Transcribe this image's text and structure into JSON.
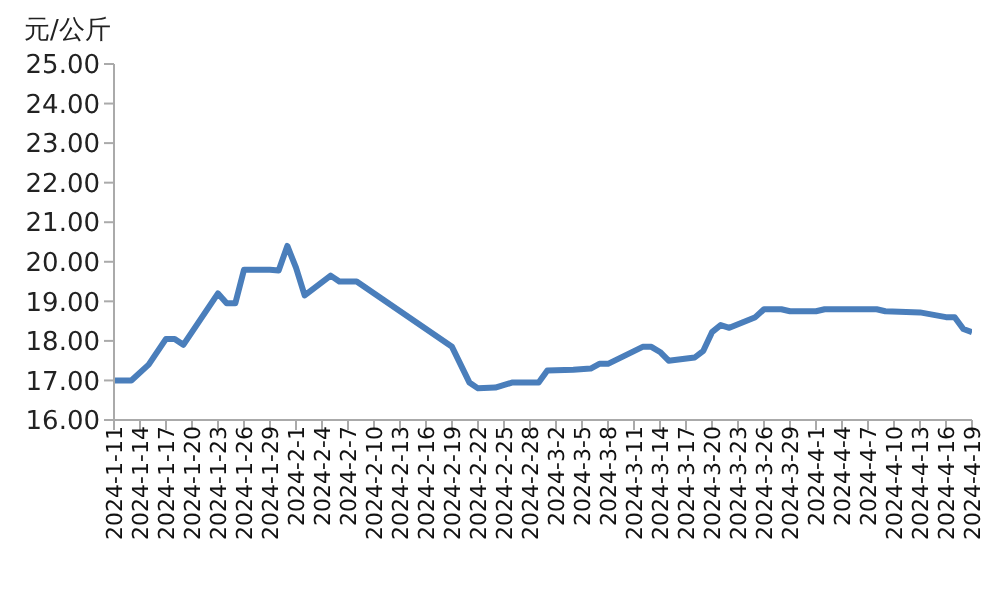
{
  "chart_data": {
    "type": "line",
    "ylabel": "元/公斤",
    "x": [
      "2024-01-11",
      "2024-01-13",
      "2024-01-15",
      "2024-01-17",
      "2024-01-18",
      "2024-01-19",
      "2024-01-23",
      "2024-01-24",
      "2024-01-25",
      "2024-01-26",
      "2024-01-29",
      "2024-01-30",
      "2024-01-31",
      "2024-02-01",
      "2024-02-02",
      "2024-02-05",
      "2024-02-06",
      "2024-02-08",
      "2024-02-19",
      "2024-02-21",
      "2024-02-22",
      "2024-02-24",
      "2024-02-26",
      "2024-02-29",
      "2024-03-01",
      "2024-03-04",
      "2024-03-06",
      "2024-03-07",
      "2024-03-08",
      "2024-03-12",
      "2024-03-13",
      "2024-03-14",
      "2024-03-15",
      "2024-03-18",
      "2024-03-19",
      "2024-03-20",
      "2024-03-21",
      "2024-03-22",
      "2024-03-25",
      "2024-03-26",
      "2024-03-28",
      "2024-03-29",
      "2024-04-01",
      "2024-04-02",
      "2024-04-08",
      "2024-04-09",
      "2024-04-13",
      "2024-04-16",
      "2024-04-17",
      "2024-04-18",
      "2024-04-19"
    ],
    "series": [
      {
        "color": "#4a7ebb",
        "values": [
          17.0,
          17.0,
          17.4,
          18.05,
          18.05,
          17.9,
          19.2,
          18.95,
          18.95,
          19.8,
          19.8,
          19.78,
          20.4,
          19.85,
          19.15,
          19.65,
          19.5,
          19.5,
          17.85,
          16.95,
          16.8,
          16.82,
          16.95,
          16.95,
          17.25,
          17.27,
          17.3,
          17.42,
          17.42,
          17.85,
          17.85,
          17.72,
          17.5,
          17.58,
          17.75,
          18.22,
          18.4,
          18.33,
          18.6,
          18.8,
          18.8,
          18.75,
          18.75,
          18.8,
          18.8,
          18.75,
          18.72,
          18.6,
          18.6,
          18.3,
          18.22
        ]
      }
    ],
    "xlim": [
      "2024-01-11",
      "2024-04-19"
    ],
    "xticks": [
      {
        "value": "2024-01-11",
        "label": "2024-1-11"
      },
      {
        "value": "2024-01-14",
        "label": "2024-1-14"
      },
      {
        "value": "2024-01-17",
        "label": "2024-1-17"
      },
      {
        "value": "2024-01-20",
        "label": "2024-1-20"
      },
      {
        "value": "2024-01-23",
        "label": "2024-1-23"
      },
      {
        "value": "2024-01-26",
        "label": "2024-1-26"
      },
      {
        "value": "2024-01-29",
        "label": "2024-1-29"
      },
      {
        "value": "2024-02-01",
        "label": "2024-2-1"
      },
      {
        "value": "2024-02-04",
        "label": "2024-2-4"
      },
      {
        "value": "2024-02-07",
        "label": "2024-2-7"
      },
      {
        "value": "2024-02-10",
        "label": "2024-2-10"
      },
      {
        "value": "2024-02-13",
        "label": "2024-2-13"
      },
      {
        "value": "2024-02-16",
        "label": "2024-2-16"
      },
      {
        "value": "2024-02-19",
        "label": "2024-2-19"
      },
      {
        "value": "2024-02-22",
        "label": "2024-2-22"
      },
      {
        "value": "2024-02-25",
        "label": "2024-2-25"
      },
      {
        "value": "2024-02-28",
        "label": "2024-2-28"
      },
      {
        "value": "2024-03-02",
        "label": "2024-3-2"
      },
      {
        "value": "2024-03-05",
        "label": "2024-3-5"
      },
      {
        "value": "2024-03-08",
        "label": "2024-3-8"
      },
      {
        "value": "2024-03-11",
        "label": "2024-3-11"
      },
      {
        "value": "2024-03-14",
        "label": "2024-3-14"
      },
      {
        "value": "2024-03-17",
        "label": "2024-3-17"
      },
      {
        "value": "2024-03-20",
        "label": "2024-3-20"
      },
      {
        "value": "2024-03-23",
        "label": "2024-3-23"
      },
      {
        "value": "2024-03-26",
        "label": "2024-3-26"
      },
      {
        "value": "2024-03-29",
        "label": "2024-3-29"
      },
      {
        "value": "2024-04-01",
        "label": "2024-4-1"
      },
      {
        "value": "2024-04-04",
        "label": "2024-4-4"
      },
      {
        "value": "2024-04-07",
        "label": "2024-4-7"
      },
      {
        "value": "2024-04-10",
        "label": "2024-4-10"
      },
      {
        "value": "2024-04-13",
        "label": "2024-4-13"
      },
      {
        "value": "2024-04-16",
        "label": "2024-4-16"
      },
      {
        "value": "2024-04-19",
        "label": "2024-4-19"
      }
    ],
    "ylim": [
      16,
      25
    ],
    "yticks": [
      {
        "value": 16,
        "label": "16.00"
      },
      {
        "value": 17,
        "label": "17.00"
      },
      {
        "value": 18,
        "label": "18.00"
      },
      {
        "value": 19,
        "label": "19.00"
      },
      {
        "value": 20,
        "label": "20.00"
      },
      {
        "value": 21,
        "label": "21.00"
      },
      {
        "value": 22,
        "label": "22.00"
      },
      {
        "value": 23,
        "label": "23.00"
      },
      {
        "value": 24,
        "label": "24.00"
      },
      {
        "value": 25,
        "label": "25.00"
      }
    ],
    "grid": false,
    "legend": false,
    "marker": "none",
    "line_style": "solid"
  }
}
